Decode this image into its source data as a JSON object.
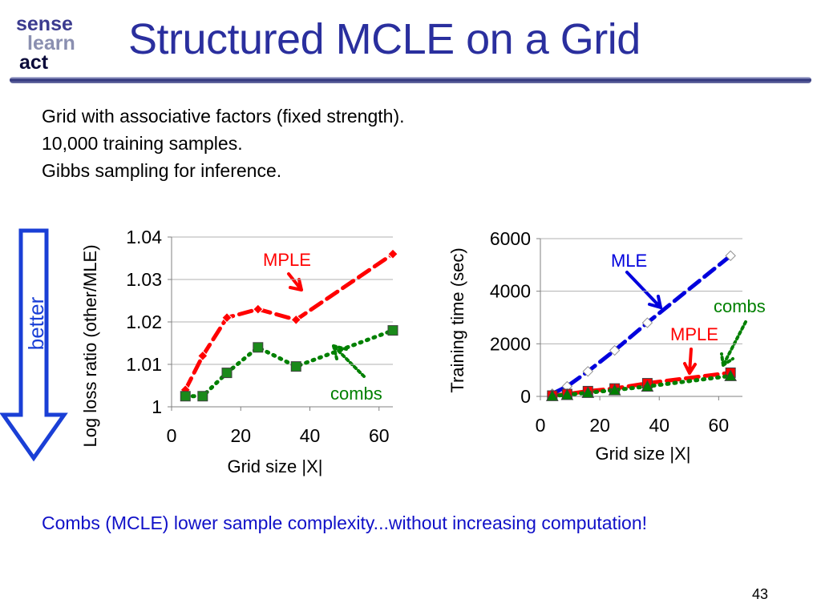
{
  "slide": {
    "title": "Structured MCLE on a Grid",
    "logo": {
      "line1": "sense",
      "line2": "learn",
      "line3": "act"
    },
    "bullets": [
      "Grid with associative factors (fixed strength).",
      "10,000 training samples.",
      "Gibbs sampling for inference."
    ],
    "footer": "Combs (MCLE) lower sample complexity...without increasing computation!",
    "page_number": "43",
    "better_label": "better",
    "colors": {
      "title": "#2a2f9e",
      "arrow": "#1a3fd6",
      "footer": "#1010c8"
    }
  },
  "chart_data": [
    {
      "type": "line",
      "xlabel": "Grid size |X|",
      "ylabel": "Log loss ratio (other/MLE)",
      "xlim": [
        0,
        64
      ],
      "ylim": [
        1,
        1.04
      ],
      "xticks": [
        "0",
        "20",
        "40",
        "60"
      ],
      "yticks": [
        "1",
        "1.01",
        "1.02",
        "1.03",
        "1.04"
      ],
      "grid": true,
      "series": [
        {
          "name": "MPLE",
          "color": "#ff0000",
          "style": "dashed",
          "marker": "diamond",
          "x": [
            4,
            9,
            16,
            25,
            36,
            64
          ],
          "y": [
            1.004,
            1.012,
            1.021,
            1.023,
            1.0205,
            1.036
          ]
        },
        {
          "name": "combs",
          "color": "#008000",
          "style": "dotted",
          "marker": "square",
          "x": [
            4,
            9,
            16,
            25,
            36,
            64
          ],
          "y": [
            1.0025,
            1.0025,
            1.008,
            1.014,
            1.0095,
            1.018
          ]
        }
      ],
      "annotations": [
        "MPLE",
        "combs"
      ]
    },
    {
      "type": "line",
      "xlabel": "Grid size |X|",
      "ylabel": "Training time (sec)",
      "xlim": [
        0,
        68
      ],
      "ylim": [
        0,
        6000
      ],
      "xticks": [
        "0",
        "20",
        "40",
        "60"
      ],
      "yticks": [
        "0",
        "2000",
        "4000",
        "6000"
      ],
      "grid": true,
      "series": [
        {
          "name": "MLE",
          "color": "#0000dd",
          "style": "dashed",
          "marker": "diamond-white",
          "x": [
            4,
            9,
            16,
            25,
            36,
            64
          ],
          "y": [
            100,
            380,
            950,
            1750,
            2800,
            5350
          ]
        },
        {
          "name": "MPLE",
          "color": "#ff0000",
          "style": "dashed",
          "marker": "square",
          "x": [
            4,
            9,
            16,
            25,
            36,
            64
          ],
          "y": [
            30,
            90,
            200,
            300,
            500,
            900
          ]
        },
        {
          "name": "combs",
          "color": "#008000",
          "style": "dotted",
          "marker": "triangle",
          "x": [
            4,
            9,
            16,
            25,
            36,
            64
          ],
          "y": [
            20,
            60,
            140,
            240,
            380,
            780
          ]
        }
      ],
      "annotations": [
        "MLE",
        "combs",
        "MPLE"
      ]
    }
  ]
}
